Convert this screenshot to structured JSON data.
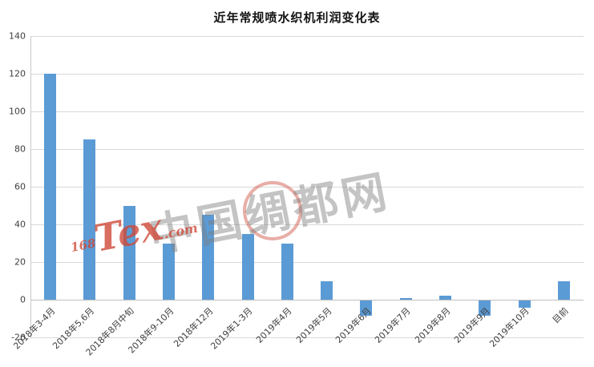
{
  "chart_data": {
    "type": "bar",
    "title": "近年常规喷水织机利润变化表",
    "categories": [
      "2018年3-4月",
      "2018年5,6月",
      "2018年8月中旬",
      "2018年9-10月",
      "2018年12月",
      "2019年1-3月",
      "2019年4月",
      "2019年5月",
      "2019年6月",
      "2019年7月",
      "2019年8月",
      "2019年9月",
      "2019年10月",
      "目前"
    ],
    "values": [
      120,
      85,
      50,
      30,
      45,
      35,
      30,
      10,
      -8,
      1,
      2,
      -8,
      -4,
      10
    ],
    "y_ticks": [
      -20,
      0,
      20,
      40,
      60,
      80,
      100,
      120,
      140
    ],
    "ylim": [
      -20,
      140
    ],
    "xlabel": "",
    "ylabel": "",
    "grid": true,
    "legend_position": "none",
    "bar_color": "#5b9bd5",
    "gridline_color": "#d9d9d9",
    "axis_text_color": "#404040"
  },
  "watermark": {
    "site_name": "中国绸都网",
    "logo_prefix": "168",
    "logo_text": "Tex",
    "logo_suffix": ".com",
    "logo_color": "#ce4838"
  }
}
